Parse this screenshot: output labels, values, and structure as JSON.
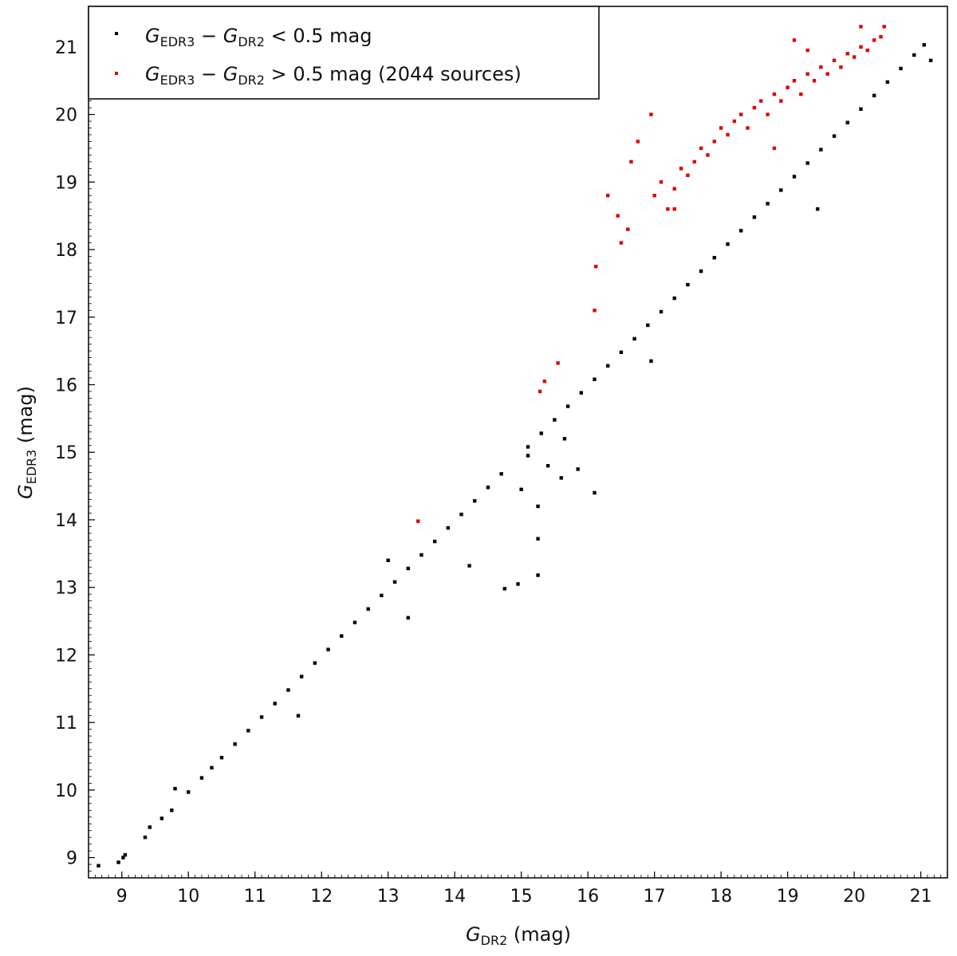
{
  "chart_data": {
    "type": "scatter",
    "xlabel": {
      "symbol": "G",
      "sub": "DR2",
      "unit": " (mag)"
    },
    "ylabel": {
      "symbol": "G",
      "sub": "EDR3",
      "unit": " (mag)"
    },
    "xlim": [
      8.5,
      21.4
    ],
    "ylim": [
      8.7,
      21.6
    ],
    "xticks": [
      9,
      10,
      11,
      12,
      13,
      14,
      15,
      16,
      17,
      18,
      19,
      20,
      21
    ],
    "yticks": [
      9,
      10,
      11,
      12,
      13,
      14,
      15,
      16,
      17,
      18,
      19,
      20,
      21
    ],
    "legend_position": "top-left",
    "series": [
      {
        "name": "G_EDR3 − G_DR2 < 0.5 mag",
        "legend": {
          "a": "G",
          "a_sub": "EDR3",
          "op1": " − ",
          "b": "G",
          "b_sub": "DR2",
          "rest": " < 0.5 mag"
        },
        "color": "#000000",
        "points": [
          [
            8.65,
            8.88
          ],
          [
            8.95,
            8.93
          ],
          [
            9.02,
            9.0
          ],
          [
            9.05,
            9.04
          ],
          [
            9.35,
            9.3
          ],
          [
            9.42,
            9.45
          ],
          [
            9.6,
            9.58
          ],
          [
            9.75,
            9.7
          ],
          [
            9.8,
            10.02
          ],
          [
            10.0,
            9.97
          ],
          [
            10.2,
            10.18
          ],
          [
            10.35,
            10.33
          ],
          [
            10.5,
            10.48
          ],
          [
            10.7,
            10.68
          ],
          [
            10.9,
            10.88
          ],
          [
            11.1,
            11.08
          ],
          [
            11.3,
            11.28
          ],
          [
            11.5,
            11.48
          ],
          [
            11.65,
            11.1
          ],
          [
            11.7,
            11.68
          ],
          [
            11.9,
            11.88
          ],
          [
            12.1,
            12.08
          ],
          [
            12.3,
            12.28
          ],
          [
            12.5,
            12.48
          ],
          [
            12.7,
            12.68
          ],
          [
            12.9,
            12.88
          ],
          [
            13.0,
            13.4
          ],
          [
            13.1,
            13.08
          ],
          [
            13.3,
            12.55
          ],
          [
            13.3,
            13.28
          ],
          [
            13.5,
            13.48
          ],
          [
            13.7,
            13.68
          ],
          [
            13.9,
            13.88
          ],
          [
            14.1,
            14.08
          ],
          [
            14.22,
            13.32
          ],
          [
            14.3,
            14.28
          ],
          [
            14.5,
            14.48
          ],
          [
            14.7,
            14.68
          ],
          [
            14.75,
            12.98
          ],
          [
            14.95,
            13.05
          ],
          [
            15.0,
            14.45
          ],
          [
            15.1,
            14.95
          ],
          [
            15.1,
            15.08
          ],
          [
            15.25,
            14.2
          ],
          [
            15.25,
            13.72
          ],
          [
            15.25,
            13.18
          ],
          [
            15.3,
            15.28
          ],
          [
            15.4,
            14.8
          ],
          [
            15.5,
            15.48
          ],
          [
            15.6,
            14.62
          ],
          [
            15.65,
            15.2
          ],
          [
            15.7,
            15.68
          ],
          [
            15.85,
            14.75
          ],
          [
            15.9,
            15.88
          ],
          [
            16.1,
            14.4
          ],
          [
            16.1,
            16.08
          ],
          [
            16.3,
            16.28
          ],
          [
            16.5,
            16.48
          ],
          [
            16.7,
            16.68
          ],
          [
            16.9,
            16.88
          ],
          [
            16.95,
            16.35
          ],
          [
            17.1,
            17.08
          ],
          [
            17.3,
            17.28
          ],
          [
            17.5,
            17.48
          ],
          [
            17.7,
            17.68
          ],
          [
            17.9,
            17.88
          ],
          [
            18.1,
            18.08
          ],
          [
            18.3,
            18.28
          ],
          [
            18.5,
            18.48
          ],
          [
            18.7,
            18.68
          ],
          [
            18.9,
            18.88
          ],
          [
            19.1,
            19.08
          ],
          [
            19.3,
            19.28
          ],
          [
            19.45,
            18.6
          ],
          [
            19.5,
            19.48
          ],
          [
            19.7,
            19.68
          ],
          [
            19.9,
            19.88
          ],
          [
            20.1,
            20.08
          ],
          [
            20.3,
            20.28
          ],
          [
            20.5,
            20.48
          ],
          [
            20.7,
            20.68
          ],
          [
            20.9,
            20.88
          ],
          [
            21.05,
            21.03
          ],
          [
            21.15,
            20.8
          ]
        ]
      },
      {
        "name": "G_EDR3 − G_DR2 > 0.5 mag (2044 sources)",
        "legend": {
          "a": "G",
          "a_sub": "EDR3",
          "op1": " − ",
          "b": "G",
          "b_sub": "DR2",
          "rest": " > 0.5 mag (2044 sources)"
        },
        "color": "#e00000",
        "points": [
          [
            13.45,
            13.98
          ],
          [
            15.28,
            15.9
          ],
          [
            15.35,
            16.05
          ],
          [
            15.55,
            16.32
          ],
          [
            16.1,
            17.1
          ],
          [
            16.12,
            17.75
          ],
          [
            16.3,
            18.8
          ],
          [
            16.45,
            18.5
          ],
          [
            16.5,
            18.1
          ],
          [
            16.6,
            18.3
          ],
          [
            16.65,
            19.3
          ],
          [
            16.75,
            19.6
          ],
          [
            16.95,
            20.0
          ],
          [
            17.0,
            18.8
          ],
          [
            17.1,
            19.0
          ],
          [
            17.2,
            18.6
          ],
          [
            17.3,
            18.9
          ],
          [
            17.4,
            19.2
          ],
          [
            17.5,
            19.1
          ],
          [
            17.6,
            19.3
          ],
          [
            17.7,
            19.5
          ],
          [
            17.8,
            19.4
          ],
          [
            17.9,
            19.6
          ],
          [
            18.0,
            19.8
          ],
          [
            18.1,
            19.7
          ],
          [
            18.2,
            19.9
          ],
          [
            18.3,
            20.0
          ],
          [
            18.4,
            19.8
          ],
          [
            18.5,
            20.1
          ],
          [
            18.6,
            20.2
          ],
          [
            18.7,
            20.0
          ],
          [
            18.8,
            20.3
          ],
          [
            18.9,
            20.2
          ],
          [
            19.0,
            20.4
          ],
          [
            19.1,
            20.5
          ],
          [
            19.2,
            20.3
          ],
          [
            19.3,
            20.6
          ],
          [
            19.4,
            20.5
          ],
          [
            19.5,
            20.7
          ],
          [
            19.6,
            20.6
          ],
          [
            19.7,
            20.8
          ],
          [
            19.8,
            20.7
          ],
          [
            19.9,
            20.9
          ],
          [
            20.0,
            20.85
          ],
          [
            20.1,
            21.0
          ],
          [
            20.2,
            20.95
          ],
          [
            20.3,
            21.1
          ],
          [
            20.45,
            21.3
          ],
          [
            19.1,
            21.1
          ],
          [
            20.1,
            21.3
          ],
          [
            19.3,
            20.95
          ],
          [
            17.3,
            18.6
          ],
          [
            18.8,
            19.5
          ],
          [
            20.4,
            21.15
          ]
        ]
      }
    ]
  }
}
